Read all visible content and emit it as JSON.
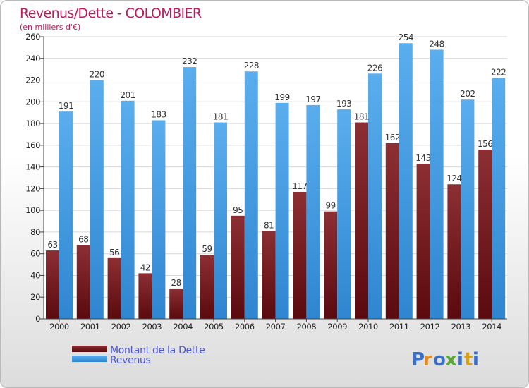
{
  "chart_data": {
    "type": "bar",
    "title": "Revenus/Dette - COLOMBIER",
    "subtitle": "(en milliers d'€)",
    "categories": [
      "2000",
      "2001",
      "2002",
      "2003",
      "2004",
      "2005",
      "2006",
      "2007",
      "2008",
      "2009",
      "2010",
      "2011",
      "2012",
      "2013",
      "2014"
    ],
    "series": [
      {
        "name": "Montant de la Dette",
        "color": "#7b2226",
        "values": [
          63,
          68,
          56,
          42,
          28,
          59,
          95,
          81,
          117,
          99,
          181,
          162,
          143,
          124,
          156
        ]
      },
      {
        "name": "Revenus",
        "color": "#4da3e6",
        "values": [
          191,
          220,
          201,
          183,
          232,
          181,
          228,
          199,
          197,
          193,
          226,
          254,
          248,
          202,
          222
        ]
      }
    ],
    "ylim": [
      0,
      260
    ],
    "yticks": [
      0,
      20,
      40,
      60,
      80,
      100,
      120,
      140,
      160,
      180,
      200,
      220,
      240,
      260
    ],
    "grid": true,
    "legend_position": "bottom-left"
  },
  "logo": {
    "text": "Proxiti",
    "letters": [
      "P",
      "r",
      "o",
      "x",
      "i",
      "t",
      "i"
    ]
  },
  "colors": {
    "title": "#c2185b",
    "legend_text": "#4a55d8"
  }
}
